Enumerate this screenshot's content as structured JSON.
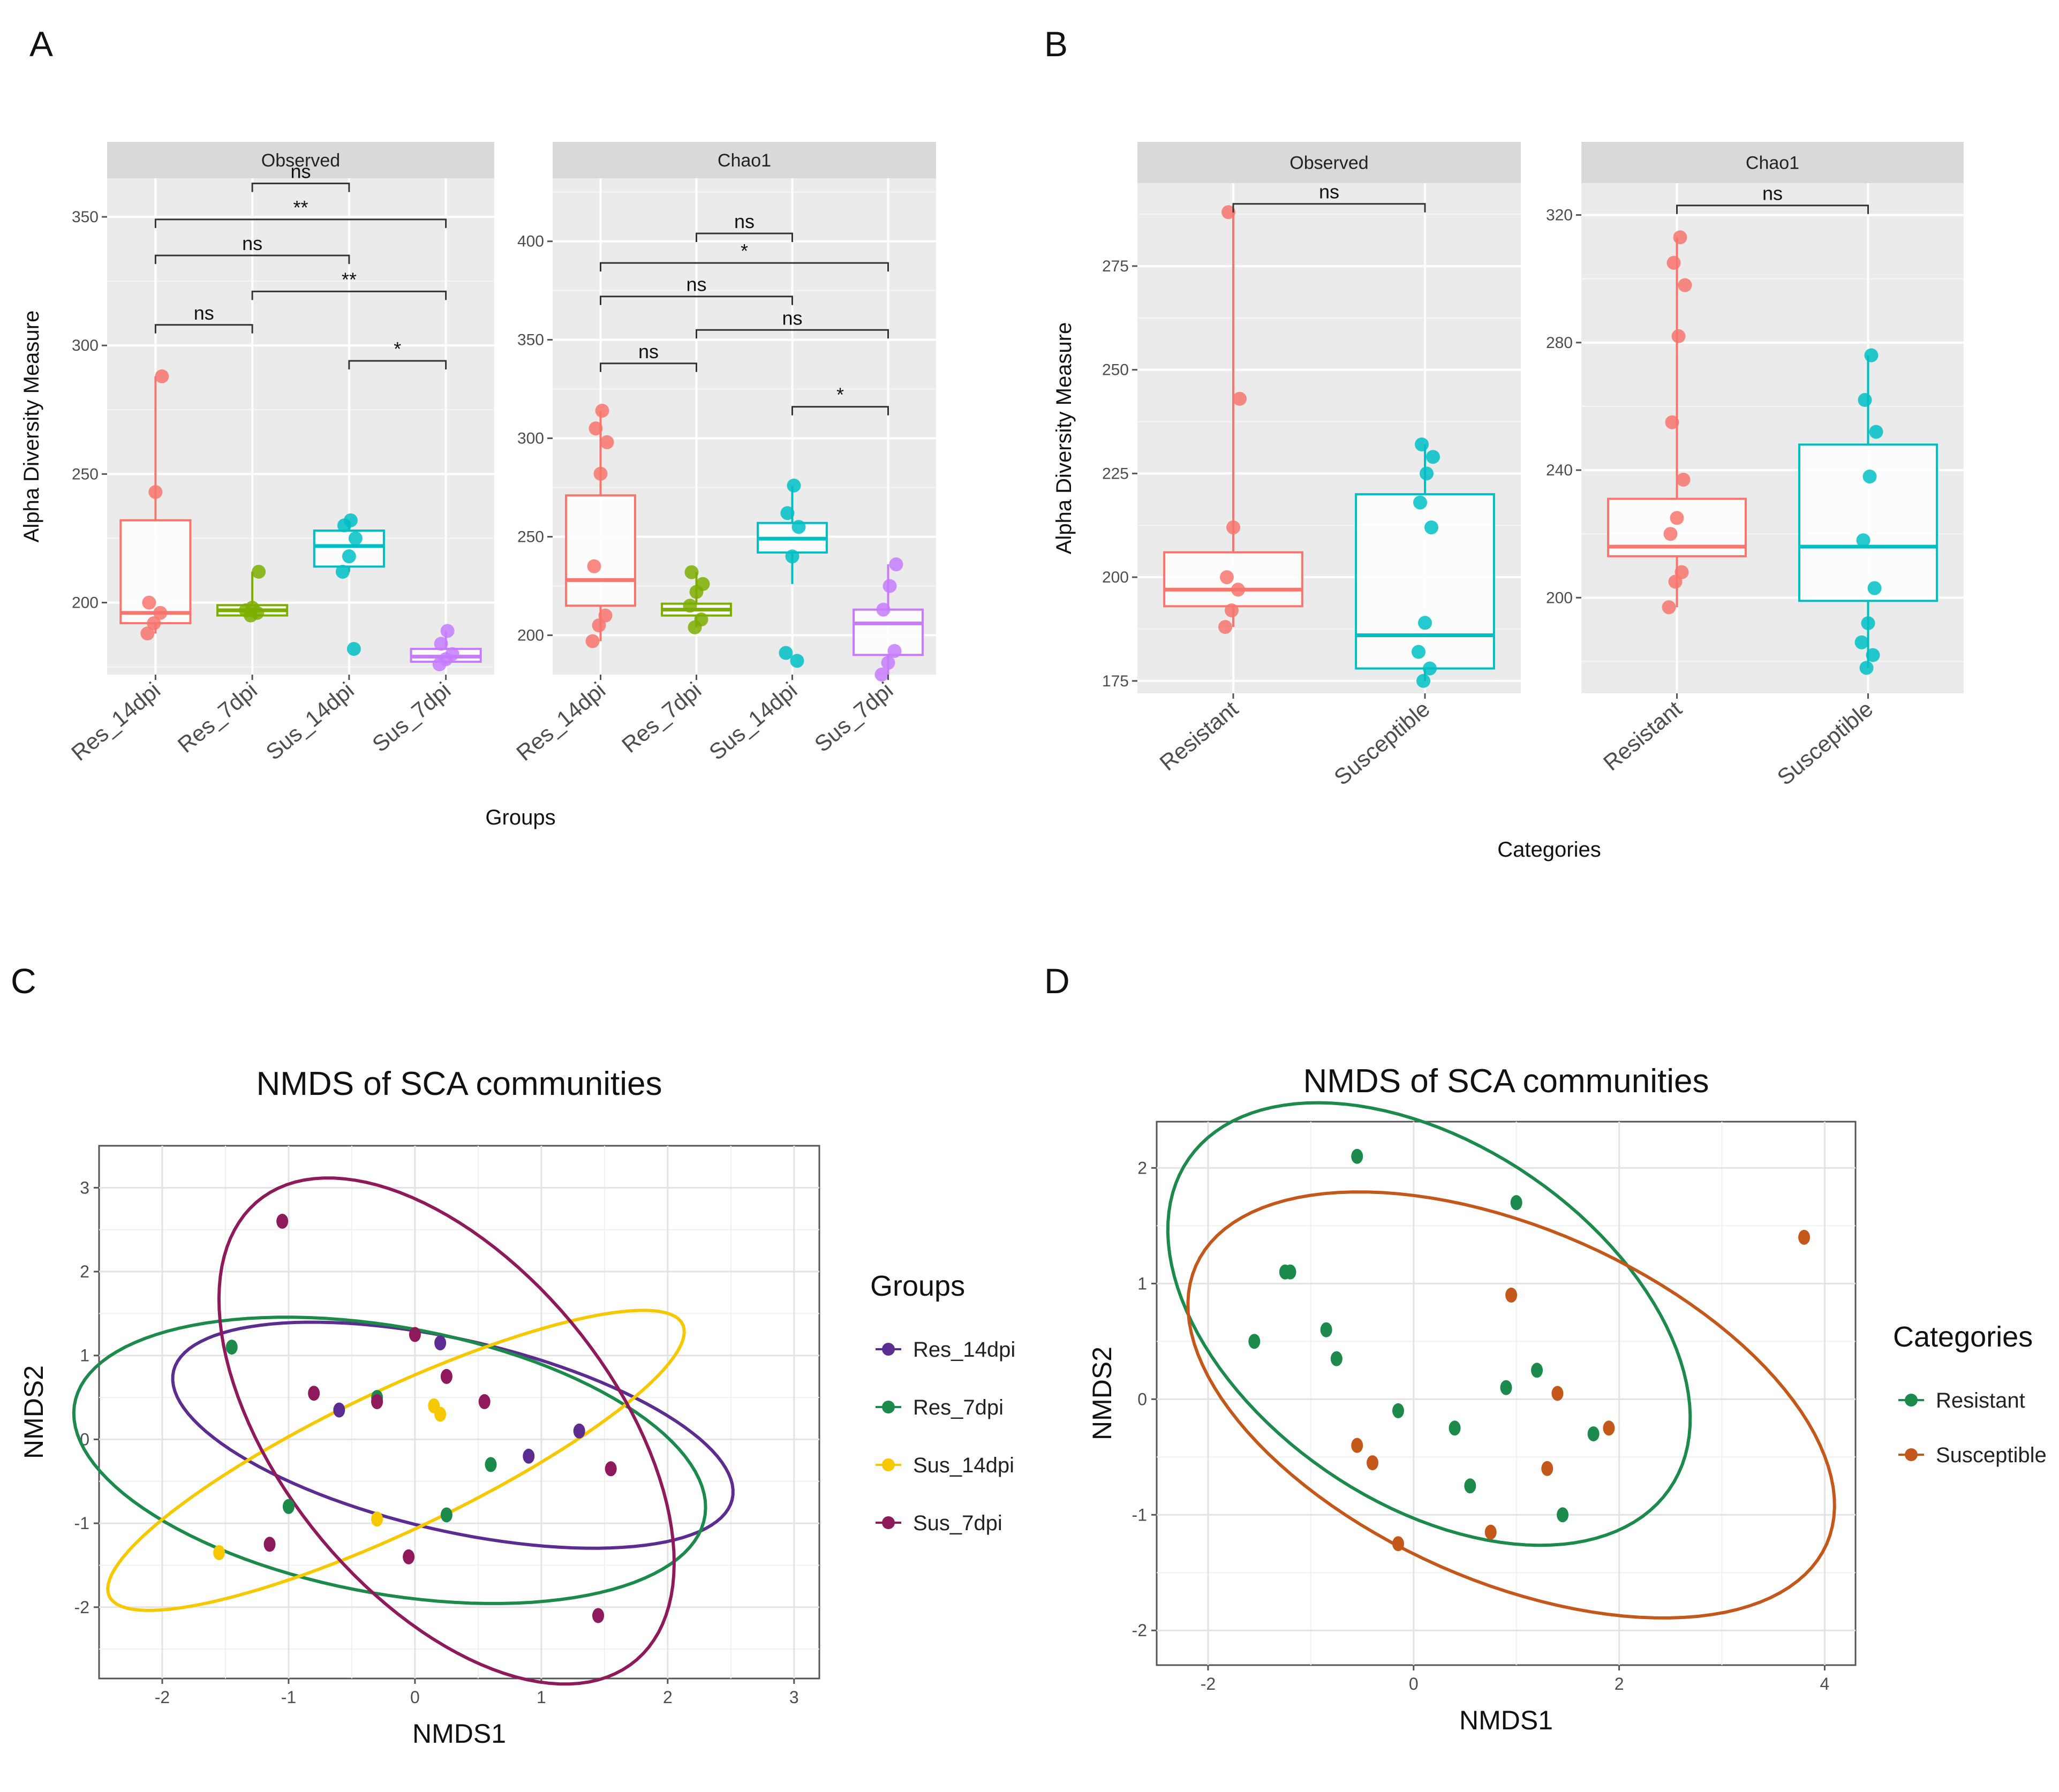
{
  "panel_labels": {
    "a": "A",
    "b": "B",
    "c": "C",
    "d": "D"
  },
  "significance": {
    "ns": "ns",
    "one_star": "*",
    "two_star": "**"
  },
  "chart_data": [
    {
      "id": "A",
      "type": "box",
      "ylabel": "Alpha Diversity Measure",
      "xlabel": "Groups",
      "categories": [
        "Res_14dpi",
        "Res_7dpi",
        "Sus_14dpi",
        "Sus_7dpi"
      ],
      "colors": [
        "#f8766d",
        "#7cae00",
        "#00bfc4",
        "#c77cff"
      ],
      "facets": [
        {
          "title": "Observed",
          "ylim": [
            172,
            365
          ],
          "yticks": [
            200,
            250,
            300,
            350
          ],
          "boxes": [
            {
              "q1": 192,
              "median": 196,
              "q3": 232,
              "lo": 188,
              "hi": 288,
              "points": [
                188,
                192,
                196,
                200,
                243,
                288
              ]
            },
            {
              "q1": 195,
              "median": 197,
              "q3": 199,
              "lo": 195,
              "hi": 212,
              "points": [
                195,
                196,
                197,
                198,
                212
              ]
            },
            {
              "q1": 214,
              "median": 222,
              "q3": 228,
              "lo": 212,
              "hi": 232,
              "points": [
                182,
                212,
                218,
                225,
                230,
                232
              ]
            },
            {
              "q1": 177,
              "median": 179,
              "q3": 182,
              "lo": 176,
              "hi": 189,
              "points": [
                176,
                178,
                180,
                184,
                189
              ]
            }
          ],
          "brackets": [
            {
              "from": 0,
              "to": 1,
              "y": 308,
              "label": "ns"
            },
            {
              "from": 2,
              "to": 3,
              "y": 294,
              "label": "*"
            },
            {
              "from": 1,
              "to": 3,
              "y": 321,
              "label": "**"
            },
            {
              "from": 0,
              "to": 2,
              "y": 335,
              "label": "ns"
            },
            {
              "from": 0,
              "to": 3,
              "y": 349,
              "label": "**"
            },
            {
              "from": 1,
              "to": 2,
              "y": 363,
              "label": "ns"
            }
          ]
        },
        {
          "title": "Chao1",
          "ylim": [
            180,
            432
          ],
          "yticks": [
            200,
            250,
            300,
            350,
            400
          ],
          "boxes": [
            {
              "q1": 215,
              "median": 228,
              "q3": 271,
              "lo": 197,
              "hi": 314,
              "points": [
                197,
                205,
                210,
                235,
                282,
                298,
                305,
                314
              ]
            },
            {
              "q1": 210,
              "median": 213,
              "q3": 216,
              "lo": 204,
              "hi": 232,
              "points": [
                204,
                208,
                215,
                222,
                226,
                232
              ]
            },
            {
              "q1": 242,
              "median": 249,
              "q3": 257,
              "lo": 226,
              "hi": 276,
              "points": [
                187,
                191,
                240,
                255,
                262,
                276
              ]
            },
            {
              "q1": 190,
              "median": 206,
              "q3": 213,
              "lo": 180,
              "hi": 236,
              "points": [
                180,
                186,
                192,
                213,
                225,
                236
              ]
            }
          ],
          "brackets": [
            {
              "from": 0,
              "to": 1,
              "y": 338,
              "label": "ns"
            },
            {
              "from": 2,
              "to": 3,
              "y": 316,
              "label": "*"
            },
            {
              "from": 1,
              "to": 3,
              "y": 355,
              "label": "ns"
            },
            {
              "from": 0,
              "to": 2,
              "y": 372,
              "label": "ns"
            },
            {
              "from": 0,
              "to": 3,
              "y": 389,
              "label": "*"
            },
            {
              "from": 1,
              "to": 2,
              "y": 404,
              "label": "ns"
            }
          ]
        }
      ]
    },
    {
      "id": "B",
      "type": "box",
      "ylabel": "Alpha Diversity Measure",
      "xlabel": "Categories",
      "categories": [
        "Resistant",
        "Susceptible"
      ],
      "colors": [
        "#f8766d",
        "#00bfc4"
      ],
      "facets": [
        {
          "title": "Observed",
          "ylim": [
            172,
            295
          ],
          "yticks": [
            175,
            200,
            225,
            250,
            275
          ],
          "boxes": [
            {
              "q1": 193,
              "median": 197,
              "q3": 206,
              "lo": 188,
              "hi": 288,
              "points": [
                188,
                192,
                197,
                200,
                212,
                243,
                288
              ]
            },
            {
              "q1": 178,
              "median": 186,
              "q3": 220,
              "lo": 175,
              "hi": 232,
              "points": [
                175,
                178,
                182,
                189,
                212,
                218,
                225,
                229,
                232
              ]
            }
          ],
          "brackets": [
            {
              "from": 0,
              "to": 1,
              "y": 290,
              "label": "ns"
            }
          ]
        },
        {
          "title": "Chao1",
          "ylim": [
            170,
            330
          ],
          "yticks": [
            200,
            240,
            280,
            320
          ],
          "boxes": [
            {
              "q1": 213,
              "median": 216,
              "q3": 231,
              "lo": 197,
              "hi": 313,
              "points": [
                197,
                205,
                208,
                220,
                225,
                237,
                255,
                282,
                298,
                305,
                313
              ]
            },
            {
              "q1": 199,
              "median": 216,
              "q3": 248,
              "lo": 178,
              "hi": 276,
              "points": [
                178,
                182,
                186,
                192,
                203,
                218,
                238,
                252,
                262,
                276
              ]
            }
          ],
          "brackets": [
            {
              "from": 0,
              "to": 1,
              "y": 323,
              "label": "ns"
            }
          ]
        }
      ]
    },
    {
      "id": "C",
      "type": "scatter",
      "title": "NMDS of SCA communities",
      "xlabel": "NMDS1",
      "ylabel": "NMDS2",
      "xlim": [
        -2.5,
        3.2
      ],
      "ylim": [
        -2.85,
        3.5
      ],
      "xticks": [
        -2,
        -1,
        0,
        1,
        2,
        3
      ],
      "yticks": [
        -2,
        -1,
        0,
        1,
        2,
        3
      ],
      "legend_title": "Groups",
      "series": [
        {
          "name": "Res_14dpi",
          "color": "#5c2d91",
          "points": [
            [
              -0.6,
              0.35
            ],
            [
              0.9,
              -0.2
            ],
            [
              1.3,
              0.1
            ],
            [
              0.2,
              1.15
            ],
            [
              -0.3,
              0.45
            ]
          ],
          "ellipse": {
            "cx": 0.3,
            "cy": 0.05,
            "rx": 2.35,
            "ry": 1.1,
            "angle": -22
          }
        },
        {
          "name": "Res_7dpi",
          "color": "#1b8a4a",
          "points": [
            [
              -1.45,
              1.1
            ],
            [
              -1.0,
              -0.8
            ],
            [
              -0.3,
              0.5
            ],
            [
              0.25,
              -0.9
            ],
            [
              0.6,
              -0.3
            ],
            [
              1.45,
              -2.1
            ]
          ],
          "ellipse": {
            "cx": -0.2,
            "cy": -0.25,
            "rx": 2.6,
            "ry": 1.55,
            "angle": -20
          }
        },
        {
          "name": "Sus_14dpi",
          "color": "#f5c800",
          "points": [
            [
              -1.55,
              -1.35
            ],
            [
              0.15,
              0.4
            ],
            [
              0.2,
              0.3
            ],
            [
              -0.3,
              -0.95
            ]
          ],
          "ellipse": {
            "cx": -0.15,
            "cy": -0.25,
            "rx": 2.8,
            "ry": 0.75,
            "angle": 37
          }
        },
        {
          "name": "Sus_7dpi",
          "color": "#8e1a5c",
          "points": [
            [
              -1.05,
              2.6
            ],
            [
              -0.8,
              0.55
            ],
            [
              -0.3,
              0.45
            ],
            [
              0.0,
              1.25
            ],
            [
              0.25,
              0.75
            ],
            [
              0.55,
              0.45
            ],
            [
              1.55,
              -0.35
            ],
            [
              -1.15,
              -1.25
            ],
            [
              -0.05,
              -1.4
            ],
            [
              1.45,
              -2.1
            ]
          ],
          "ellipse": {
            "cx": 0.25,
            "cy": 0.1,
            "rx": 3.2,
            "ry": 1.45,
            "angle": -68
          }
        }
      ]
    },
    {
      "id": "D",
      "type": "scatter",
      "title": "NMDS of SCA communities",
      "xlabel": "NMDS1",
      "ylabel": "NMDS2",
      "xlim": [
        -2.5,
        4.3
      ],
      "ylim": [
        -2.3,
        2.4
      ],
      "xticks": [
        -2,
        0,
        2,
        4
      ],
      "yticks": [
        -2,
        -1,
        0,
        1,
        2
      ],
      "legend_title": "Categories",
      "series": [
        {
          "name": "Resistant",
          "color": "#1b8a4a",
          "points": [
            [
              -0.55,
              2.1
            ],
            [
              1.0,
              1.7
            ],
            [
              -1.25,
              1.1
            ],
            [
              -1.2,
              1.1
            ],
            [
              -1.55,
              0.5
            ],
            [
              -0.85,
              0.6
            ],
            [
              -0.75,
              0.35
            ],
            [
              -0.15,
              -0.1
            ],
            [
              0.4,
              -0.25
            ],
            [
              0.9,
              0.1
            ],
            [
              1.2,
              0.25
            ],
            [
              1.75,
              -0.3
            ],
            [
              0.55,
              -0.75
            ],
            [
              1.45,
              -1.0
            ]
          ],
          "ellipse": {
            "cx": 0.15,
            "cy": 0.65,
            "rx": 2.75,
            "ry": 1.6,
            "angle": -28
          }
        },
        {
          "name": "Susceptible",
          "color": "#c4581a",
          "points": [
            [
              3.8,
              1.4
            ],
            [
              0.95,
              0.9
            ],
            [
              1.4,
              0.05
            ],
            [
              1.9,
              -0.25
            ],
            [
              1.3,
              -0.6
            ],
            [
              -0.55,
              -0.4
            ],
            [
              -0.4,
              -0.55
            ],
            [
              0.75,
              -1.15
            ],
            [
              -0.15,
              -1.25
            ]
          ],
          "ellipse": {
            "cx": 0.95,
            "cy": -0.05,
            "rx": 3.3,
            "ry": 1.55,
            "angle": -20
          }
        }
      ]
    }
  ]
}
